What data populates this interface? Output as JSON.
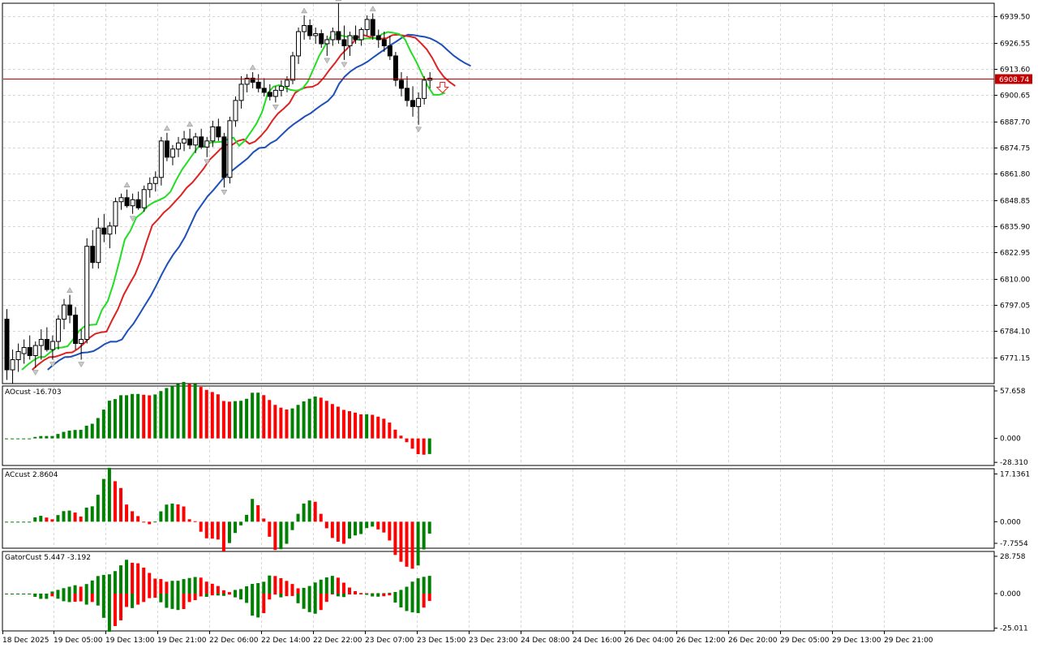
{
  "chart_data": {
    "type": "candlestick",
    "main": {
      "y_ticks": [
        "6939.50",
        "6926.55",
        "6913.60",
        "6900.65",
        "6887.70",
        "6874.75",
        "6861.80",
        "6848.85",
        "6835.90",
        "6822.95",
        "6810.00",
        "6797.05",
        "6784.10",
        "6771.15"
      ],
      "ylim": [
        6758.2,
        6946.0
      ],
      "current_price": "6908.74",
      "x_ticks": [
        "18 Dec 2025",
        "19 Dec 05:00",
        "19 Dec 13:00",
        "19 Dec 21:00",
        "22 Dec 06:00",
        "22 Dec 14:00",
        "22 Dec 22:00",
        "23 Dec 07:00",
        "23 Dec 15:00",
        "23 Dec 23:00",
        "24 Dec 08:00",
        "24 Dec 16:00",
        "26 Dec 04:00",
        "26 Dec 12:00",
        "26 Dec 20:00",
        "29 Dec 05:00",
        "29 Dec 13:00",
        "29 Dec 21:00"
      ],
      "ohlc": [
        [
          6790,
          6795,
          6760,
          6765
        ],
        [
          6765,
          6775,
          6758,
          6770
        ],
        [
          6770,
          6778,
          6764,
          6774
        ],
        [
          6773,
          6780,
          6768,
          6776
        ],
        [
          6776,
          6782,
          6770,
          6772
        ],
        [
          6772,
          6779,
          6766,
          6777
        ],
        [
          6777,
          6785,
          6770,
          6780
        ],
        [
          6780,
          6786,
          6774,
          6775
        ],
        [
          6775,
          6782,
          6770,
          6779
        ],
        [
          6779,
          6792,
          6775,
          6790
        ],
        [
          6790,
          6800,
          6785,
          6797
        ],
        [
          6797,
          6802,
          6788,
          6792
        ],
        [
          6792,
          6796,
          6775,
          6778
        ],
        [
          6778,
          6785,
          6770,
          6780
        ],
        [
          6780,
          6830,
          6778,
          6826
        ],
        [
          6826,
          6834,
          6815,
          6818
        ],
        [
          6818,
          6840,
          6815,
          6835
        ],
        [
          6835,
          6842,
          6828,
          6832
        ],
        [
          6832,
          6838,
          6825,
          6836
        ],
        [
          6836,
          6850,
          6832,
          6848
        ],
        [
          6848,
          6852,
          6844,
          6850
        ],
        [
          6850,
          6854,
          6845,
          6846
        ],
        [
          6846,
          6852,
          6842,
          6849
        ],
        [
          6849,
          6853,
          6844,
          6845
        ],
        [
          6845,
          6856,
          6843,
          6854
        ],
        [
          6854,
          6860,
          6850,
          6857
        ],
        [
          6857,
          6863,
          6853,
          6860
        ],
        [
          6860,
          6880,
          6856,
          6878
        ],
        [
          6878,
          6882,
          6868,
          6870
        ],
        [
          6870,
          6876,
          6866,
          6874
        ],
        [
          6874,
          6880,
          6870,
          6877
        ],
        [
          6877,
          6883,
          6873,
          6879
        ],
        [
          6879,
          6884,
          6874,
          6876
        ],
        [
          6876,
          6882,
          6872,
          6880
        ],
        [
          6880,
          6884,
          6874,
          6875
        ],
        [
          6875,
          6880,
          6870,
          6878
        ],
        [
          6878,
          6888,
          6875,
          6885
        ],
        [
          6885,
          6889,
          6878,
          6880
        ],
        [
          6880,
          6882,
          6855,
          6860
        ],
        [
          6860,
          6890,
          6857,
          6888
        ],
        [
          6888,
          6900,
          6885,
          6898
        ],
        [
          6898,
          6910,
          6894,
          6906
        ],
        [
          6906,
          6911,
          6902,
          6909
        ],
        [
          6909,
          6912,
          6904,
          6907
        ],
        [
          6907,
          6911,
          6902,
          6904
        ],
        [
          6904,
          6909,
          6900,
          6902
        ],
        [
          6902,
          6906,
          6898,
          6900
        ],
        [
          6900,
          6905,
          6897,
          6903
        ],
        [
          6903,
          6908,
          6900,
          6905
        ],
        [
          6905,
          6910,
          6902,
          6908
        ],
        [
          6908,
          6922,
          6906,
          6920
        ],
        [
          6920,
          6934,
          6916,
          6932
        ],
        [
          6932,
          6940,
          6928,
          6935
        ],
        [
          6935,
          6938,
          6928,
          6930
        ],
        [
          6930,
          6934,
          6926,
          6931
        ],
        [
          6931,
          6933,
          6924,
          6926
        ],
        [
          6926,
          6930,
          6920,
          6928
        ],
        [
          6928,
          6934,
          6925,
          6932
        ],
        [
          6932,
          6946,
          6926,
          6928
        ],
        [
          6928,
          6935,
          6918,
          6925
        ],
        [
          6925,
          6932,
          6920,
          6930
        ],
        [
          6930,
          6935,
          6926,
          6928
        ],
        [
          6928,
          6934,
          6925,
          6933
        ],
        [
          6933,
          6940,
          6930,
          6938
        ],
        [
          6938,
          6941,
          6928,
          6930
        ],
        [
          6930,
          6933,
          6924,
          6928
        ],
        [
          6928,
          6932,
          6922,
          6925
        ],
        [
          6925,
          6930,
          6918,
          6920
        ],
        [
          6920,
          6922,
          6905,
          6908
        ],
        [
          6908,
          6912,
          6900,
          6904
        ],
        [
          6904,
          6910,
          6895,
          6898
        ],
        [
          6898,
          6905,
          6890,
          6895
        ],
        [
          6895,
          6902,
          6886,
          6899
        ],
        [
          6899,
          6910,
          6896,
          6908
        ],
        [
          6908,
          6912,
          6904,
          6909
        ]
      ],
      "lines": {
        "blue": "#1e50b8",
        "red": "#dd2222",
        "green": "#22dd22"
      }
    },
    "ao": {
      "label": "AOcust -16.703",
      "y_ticks": [
        "57.658",
        "0.000",
        "-28.310"
      ],
      "ylim": [
        -32,
        62
      ]
    },
    "ac": {
      "label": "ACcust 2.8604",
      "y_ticks": [
        "17.1361",
        "0.000",
        "-7.7554"
      ],
      "ylim": [
        -9.5,
        19
      ]
    },
    "gator": {
      "label": "GatorCust 5.447 -3.192",
      "y_ticks": [
        "28.758",
        "0.000",
        "-25.011"
      ],
      "ylim": [
        -27,
        30.5
      ]
    },
    "colors": {
      "up": "#008000",
      "down": "#ff0000",
      "grid": "#d6d6d6",
      "price_line": "#c00000",
      "price_tag": "#c00000"
    }
  }
}
